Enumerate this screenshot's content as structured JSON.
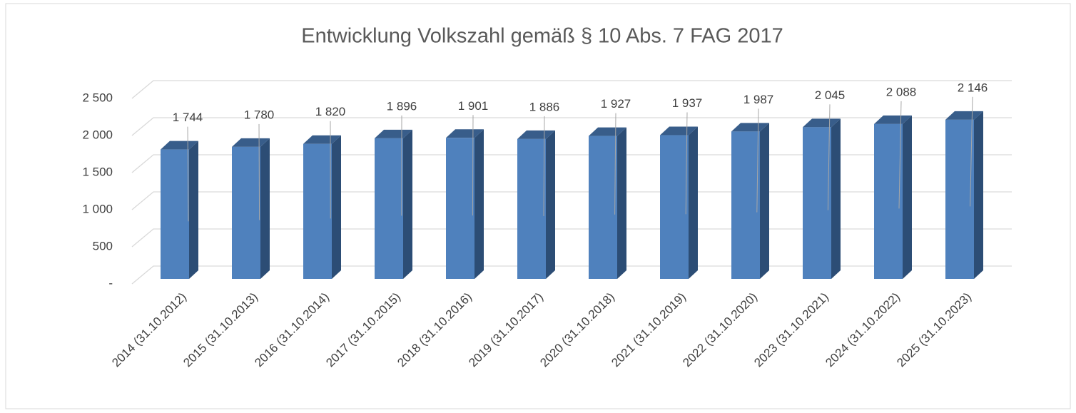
{
  "chart_data": {
    "type": "bar3d",
    "title": "Entwicklung Volkszahl gemäß § 10 Abs. 7 FAG 2017",
    "categories": [
      "2014 (31.10.2012)",
      "2015 (31.10.2013)",
      "2016 (31.10.2014)",
      "2017 (31.10.2015)",
      "2018 (31.10.2016)",
      "2019 (31.10.2017)",
      "2020 (31.10.2018)",
      "2021 (31.10.2019)",
      "2022 (31.10.2020)",
      "2023 (31.10.2021)",
      "2024 (31.10.2022)",
      "2025 (31.10.2023)"
    ],
    "values": [
      1744,
      1780,
      1820,
      1896,
      1901,
      1886,
      1927,
      1937,
      1987,
      2045,
      2088,
      2146
    ],
    "value_labels": [
      "1 744",
      "1 780",
      "1 820",
      "1 896",
      "1 901",
      "1 886",
      "1 927",
      "1 937",
      "1 987",
      "2 045",
      "2 088",
      "2 146"
    ],
    "color": "#4f81bd",
    "ylim": [
      0,
      2500
    ],
    "yticks": [
      {
        "value": 0,
        "label": "-"
      },
      {
        "value": 500,
        "label": "500"
      },
      {
        "value": 1000,
        "label": "1 000"
      },
      {
        "value": 1500,
        "label": "1 500"
      },
      {
        "value": 2000,
        "label": "2 000"
      },
      {
        "value": 2500,
        "label": "2 500"
      }
    ],
    "grid": true
  }
}
